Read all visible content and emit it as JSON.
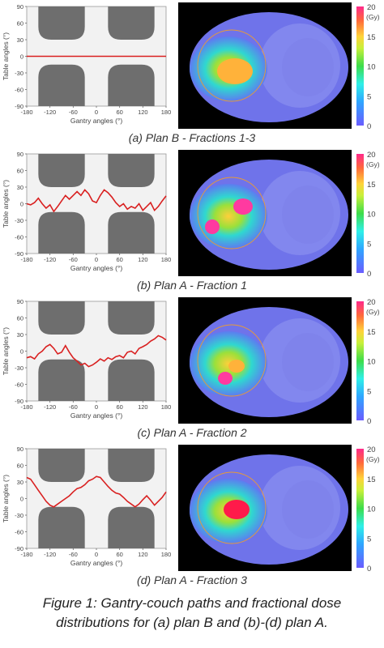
{
  "panels": [
    {
      "caption": "(a) Plan B - Fractions 1-3",
      "path": {
        "gantry": [
          -180,
          180
        ],
        "table": [
          0,
          0
        ]
      }
    },
    {
      "caption": "(b) Plan A - Fraction 1",
      "path": {
        "gantry": [
          -180,
          -170,
          -160,
          -150,
          -140,
          -130,
          -120,
          -110,
          -100,
          -90,
          -80,
          -70,
          -60,
          -50,
          -40,
          -30,
          -20,
          -10,
          0,
          10,
          20,
          30,
          40,
          50,
          60,
          70,
          80,
          90,
          100,
          110,
          120,
          130,
          140,
          150,
          160,
          170,
          180
        ],
        "table": [
          0,
          -2,
          2,
          10,
          0,
          -8,
          -2,
          -14,
          -5,
          5,
          15,
          8,
          15,
          22,
          15,
          25,
          18,
          5,
          2,
          15,
          25,
          20,
          12,
          2,
          -5,
          0,
          -10,
          -5,
          -8,
          0,
          -12,
          -5,
          2,
          -12,
          -5,
          5,
          14
        ]
      }
    },
    {
      "caption": "(c) Plan A - Fraction 2",
      "path": {
        "gantry": [
          -180,
          -170,
          -160,
          -150,
          -140,
          -130,
          -120,
          -110,
          -100,
          -90,
          -80,
          -70,
          -60,
          -50,
          -40,
          -30,
          -20,
          -10,
          0,
          10,
          20,
          30,
          40,
          50,
          60,
          70,
          80,
          90,
          100,
          110,
          120,
          130,
          140,
          150,
          160,
          170,
          180
        ],
        "table": [
          -12,
          -10,
          -14,
          -5,
          0,
          8,
          12,
          5,
          -5,
          -2,
          10,
          -2,
          -12,
          -18,
          -25,
          -22,
          -28,
          -25,
          -20,
          -14,
          -18,
          -12,
          -15,
          -10,
          -8,
          -12,
          -2,
          0,
          -5,
          5,
          8,
          12,
          18,
          22,
          28,
          25,
          20
        ]
      }
    },
    {
      "caption": "(d) Plan A - Fraction 3",
      "path": {
        "gantry": [
          -180,
          -170,
          -160,
          -150,
          -140,
          -130,
          -120,
          -110,
          -100,
          -90,
          -80,
          -70,
          -60,
          -50,
          -40,
          -30,
          -20,
          -10,
          0,
          10,
          20,
          30,
          40,
          50,
          60,
          70,
          80,
          90,
          100,
          110,
          120,
          130,
          140,
          150,
          160,
          170,
          180
        ],
        "table": [
          38,
          35,
          25,
          15,
          5,
          -5,
          -12,
          -15,
          -10,
          -5,
          0,
          5,
          12,
          18,
          20,
          25,
          32,
          35,
          40,
          38,
          30,
          22,
          15,
          10,
          8,
          2,
          -5,
          -10,
          -15,
          -10,
          -2,
          5,
          -3,
          -12,
          -5,
          2,
          12
        ]
      }
    }
  ],
  "axis": {
    "xlabel": "Gantry angles (°)",
    "ylabel": "Table angles (°)",
    "xlim": [
      -180,
      180
    ],
    "ylim": [
      -90,
      90
    ],
    "xticks": [
      -180,
      -120,
      -60,
      0,
      60,
      120,
      180
    ],
    "yticks": [
      90,
      60,
      30,
      0,
      -30,
      -60,
      -90
    ]
  },
  "colorbar": {
    "unit": "(Gy)",
    "ticks": [
      20,
      15,
      10,
      5,
      0
    ]
  },
  "colors": {
    "path": "#d92020",
    "collision": "#6e6e6e",
    "plot_bg": "#f2f2f2"
  },
  "figure_caption": "Figure 1: Gantry-couch paths and fractional dose distributions for (a) plan B and (b)-(d) plan A."
}
